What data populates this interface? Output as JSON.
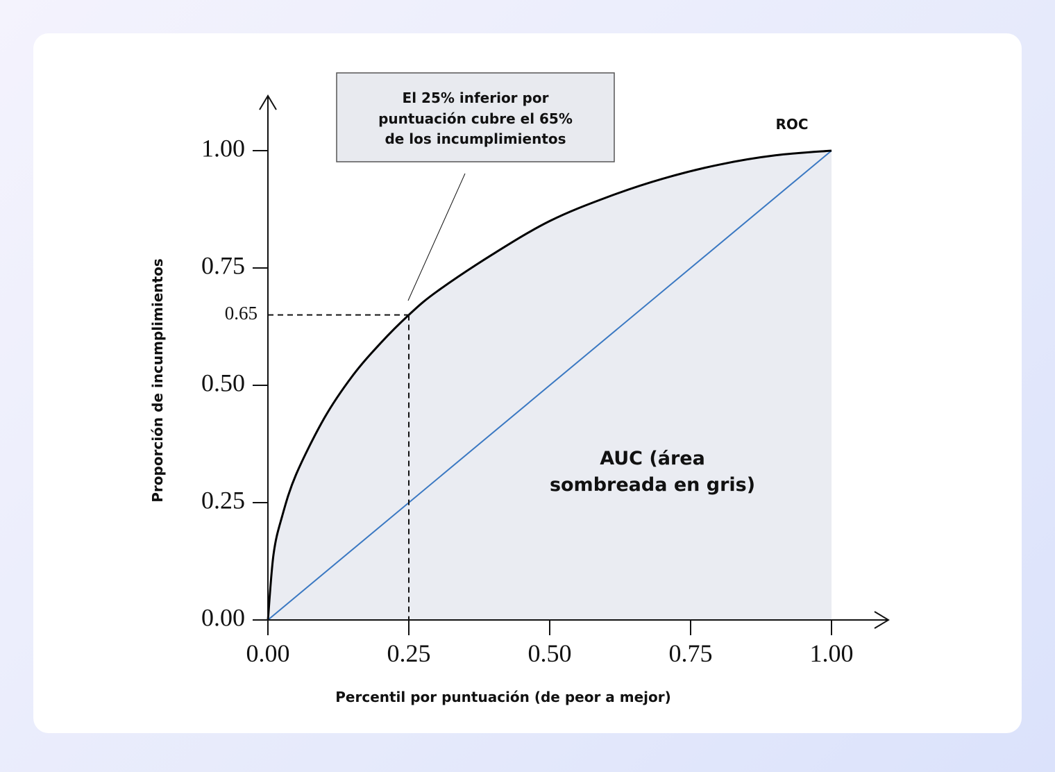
{
  "chart_data": {
    "type": "line",
    "xlabel": "Percentil por puntuación (de peor a mejor)",
    "ylabel": "Proporción de incumplimientos",
    "xlim": [
      0,
      1
    ],
    "ylim": [
      0,
      1
    ],
    "x_ticks": [
      "0.00",
      "0.25",
      "0.50",
      "0.75",
      "1.00"
    ],
    "y_ticks": [
      "0.00",
      "0.25",
      "0.50",
      "0.75",
      "1.00"
    ],
    "highlight": {
      "x": 0.25,
      "y": 0.65,
      "y_label": "0.65"
    },
    "series": [
      {
        "name": "ROC",
        "color": "#000000",
        "x": [
          0,
          0.01,
          0.025,
          0.05,
          0.1,
          0.15,
          0.2,
          0.25,
          0.3,
          0.4,
          0.5,
          0.6,
          0.7,
          0.8,
          0.9,
          1.0
        ],
        "y": [
          0,
          0.14,
          0.22,
          0.31,
          0.43,
          0.52,
          0.59,
          0.65,
          0.7,
          0.78,
          0.85,
          0.9,
          0.94,
          0.97,
          0.99,
          1.0
        ]
      },
      {
        "color": "#3a78c2",
        "x": [
          0,
          1
        ],
        "y": [
          0,
          1
        ]
      }
    ],
    "annotations": {
      "note_lines": [
        "El 25% inferior por",
        "puntuación cubre el 65%",
        "de los incumplimientos"
      ],
      "auc_lines": [
        "AUC (área",
        "sombreada en gris)"
      ]
    },
    "colors": {
      "area_fill": "#eaecf2",
      "note_fill": "#e8eaef",
      "note_border": "#555555"
    }
  }
}
